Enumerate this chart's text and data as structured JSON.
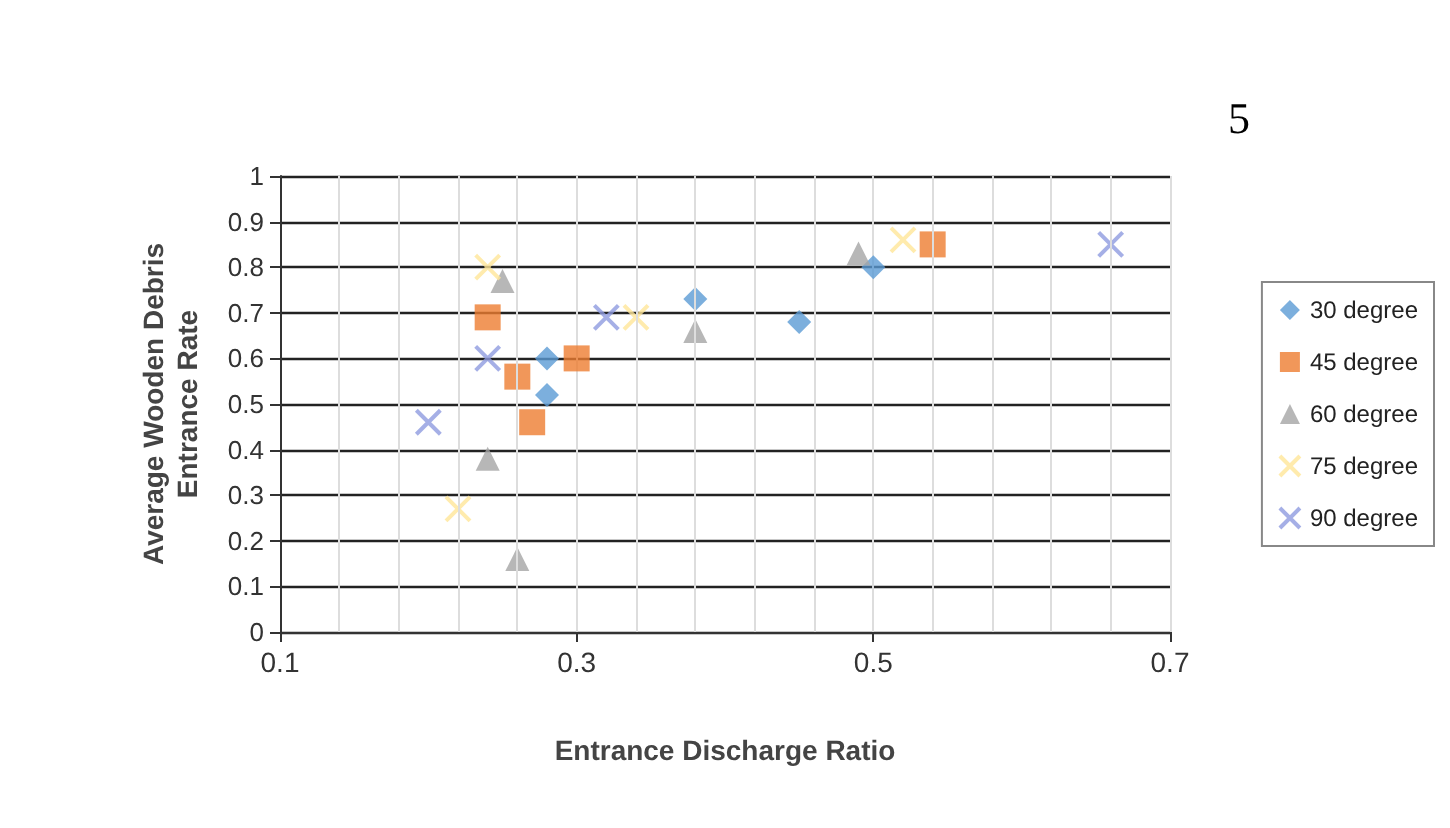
{
  "chart_data": {
    "type": "scatter",
    "xlabel": "Entrance Discharge Ratio",
    "ylabel": "Average Wooden Debris\nEntrance Rate",
    "annotations": [
      "5"
    ],
    "xlim": [
      0.1,
      0.7
    ],
    "xticks": [
      0.1,
      {
        "value": 0.14,
        "label": null
      },
      {
        "value": 0.18,
        "label": null
      },
      {
        "value": 0.22,
        "label": null
      },
      {
        "value": 0.26,
        "label": null
      },
      0.3,
      {
        "value": 0.34,
        "label": null
      },
      {
        "value": 0.38,
        "label": null
      },
      {
        "value": 0.42,
        "label": null
      },
      {
        "value": 0.46,
        "label": null
      },
      0.5,
      {
        "value": 0.54,
        "label": null
      },
      {
        "value": 0.58,
        "label": null
      },
      {
        "value": 0.62,
        "label": null
      },
      {
        "value": 0.66,
        "label": null
      },
      0.7
    ],
    "ylim": [
      0,
      1
    ],
    "yticks": [
      0,
      0.1,
      0.2,
      0.3,
      0.4,
      0.5,
      0.6,
      0.7,
      0.8,
      0.9,
      1
    ],
    "grid": true,
    "legend": "right",
    "series": [
      {
        "name": "30 degree",
        "color": "#5b9bd5",
        "marker": "diamond",
        "x": [
          0.28,
          0.28,
          0.38,
          0.45,
          0.5
        ],
        "values": [
          0.6,
          0.52,
          0.73,
          0.68,
          0.8
        ]
      },
      {
        "name": "45 degree",
        "color": "#ed7d31",
        "marker": "square",
        "x": [
          0.24,
          0.26,
          0.27,
          0.3,
          0.54
        ],
        "values": [
          0.69,
          0.56,
          0.46,
          0.6,
          0.85
        ]
      },
      {
        "name": "60 degree",
        "color": "#a5a5a5",
        "marker": "triangle",
        "x": [
          0.25,
          0.24,
          0.26,
          0.38,
          0.49
        ],
        "values": [
          0.77,
          0.38,
          0.16,
          0.66,
          0.83
        ]
      },
      {
        "name": "75 degree",
        "color": "#ffe699",
        "marker": "cross",
        "x": [
          0.24,
          0.22,
          0.34,
          0.52
        ],
        "values": [
          0.8,
          0.27,
          0.69,
          0.86
        ]
      },
      {
        "name": "90 degree",
        "color": "#8e9be0",
        "marker": "cross",
        "x": [
          0.2,
          0.24,
          0.32,
          0.66
        ],
        "values": [
          0.46,
          0.6,
          0.69,
          0.85
        ]
      }
    ]
  }
}
